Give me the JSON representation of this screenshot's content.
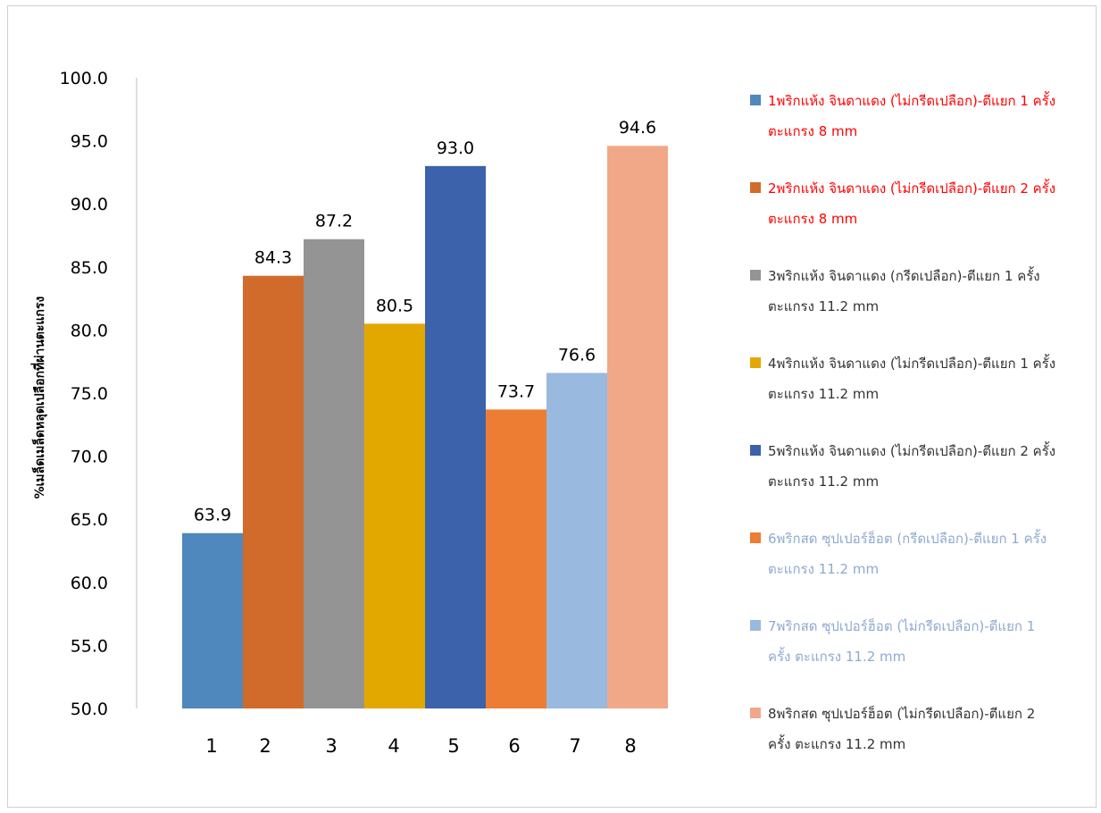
{
  "chart_data": {
    "type": "bar",
    "ylabel": "%เมล็ดเมล็ดหลุดเปลือกที่ผ่านตะแกรง",
    "ylim": [
      50,
      100
    ],
    "ytick_step": 5,
    "ytick_labels": [
      "50.0",
      "55.0",
      "60.0",
      "65.0",
      "70.0",
      "75.0",
      "80.0",
      "85.0",
      "90.0",
      "95.0",
      "100.0"
    ],
    "categories": [
      "1",
      "2",
      "3",
      "4",
      "5",
      "6",
      "7",
      "8"
    ],
    "values": [
      63.9,
      84.3,
      87.2,
      80.5,
      93.0,
      73.7,
      76.6,
      94.6
    ],
    "value_labels": [
      "63.9",
      "84.3",
      "87.2",
      "80.5",
      "93.0",
      "73.7",
      "76.6",
      "94.6"
    ],
    "colors": [
      "#4f88bd",
      "#d16b2b",
      "#949494",
      "#e2a800",
      "#3b62aa",
      "#ec7d33",
      "#99b9de",
      "#f0a889"
    ],
    "legend_position": "right",
    "legend": [
      {
        "text": "1พริกแห้ง จินดาแดง (ไม่กรีดเปลือก)-ตีแยก 1 ครั้ง\nตะแกรง 8 mm",
        "text_color": "#ff0000"
      },
      {
        "text": "2พริกแห้ง จินดาแดง (ไม่กรีดเปลือก)-ตีแยก 2 ครั้ง\nตะแกรง 8 mm",
        "text_color": "#ff0000"
      },
      {
        "text": "3พริกแห้ง จินดาแดง (กรีดเปลือก)-ตีแยก 1 ครั้ง\nตะแกรง 11.2 mm",
        "text_color": "#333333"
      },
      {
        "text": "4พริกแห้ง จินดาแดง (ไม่กรีดเปลือก)-ตีแยก 1 ครั้ง\nตะแกรง 11.2 mm",
        "text_color": "#333333"
      },
      {
        "text": "5พริกแห้ง จินดาแดง (ไม่กรีดเปลือก)-ตีแยก 2 ครั้ง\nตะแกรง 11.2 mm",
        "text_color": "#333333"
      },
      {
        "text": "6พริกสด ซุปเปอร์ฮ็อต (กรีดเปลือก)-ตีแยก 1 ครั้ง\nตะแกรง 11.2 mm",
        "text_color": "#8eaad0"
      },
      {
        "text": "7พริกสด ซุปเปอร์ฮ็อต (ไม่กรีดเปลือก)-ตีแยก 1\nครั้ง ตะแกรง 11.2 mm",
        "text_color": "#8eaad0"
      },
      {
        "text": "8พริกสด ซุปเปอร์ฮ็อต (ไม่กรีดเปลือก)-ตีแยก 2\nครั้ง ตะแกรง 11.2 mm",
        "text_color": "#333333"
      }
    ]
  }
}
